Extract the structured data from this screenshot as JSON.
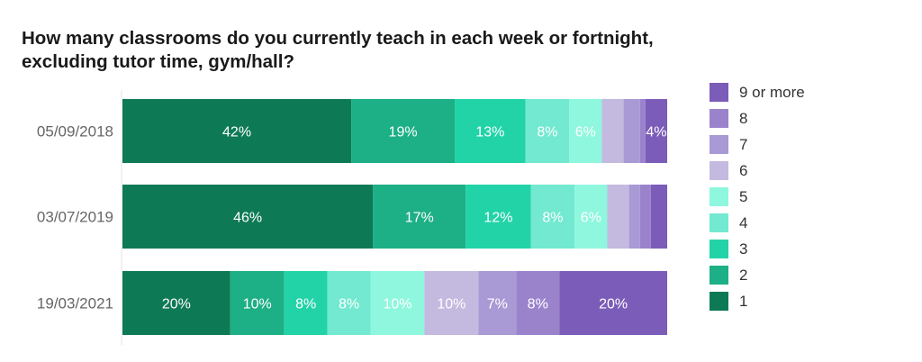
{
  "chart_data": {
    "type": "bar",
    "orientation": "horizontal",
    "stacked": true,
    "normalized": true,
    "title": "How many classrooms do you currently teach in each week or fortnight, excluding tutor time, gym/hall?",
    "categories": [
      "05/09/2018",
      "03/07/2019",
      "19/03/2021"
    ],
    "xlim": [
      0,
      100
    ],
    "grid": false,
    "legend_position": "right",
    "series": [
      {
        "name": "1",
        "color": "#0e7a55",
        "values": [
          42,
          46,
          20
        ],
        "labels": [
          "42%",
          "46%",
          "20%"
        ]
      },
      {
        "name": "2",
        "color": "#1daf86",
        "values": [
          19,
          17,
          10
        ],
        "labels": [
          "19%",
          "17%",
          "10%"
        ]
      },
      {
        "name": "3",
        "color": "#22d3a8",
        "values": [
          13,
          12,
          8
        ],
        "labels": [
          "13%",
          "12%",
          "8%"
        ]
      },
      {
        "name": "4",
        "color": "#72e9d0",
        "values": [
          8,
          8,
          8
        ],
        "labels": [
          "8%",
          "8%",
          "8%"
        ]
      },
      {
        "name": "5",
        "color": "#8ef7de",
        "values": [
          6,
          6,
          10
        ],
        "labels": [
          "6%",
          "6%",
          "10%"
        ]
      },
      {
        "name": "6",
        "color": "#c4b9df",
        "values": [
          4,
          4,
          10
        ],
        "labels": [
          "",
          "",
          "10%"
        ]
      },
      {
        "name": "7",
        "color": "#a999d4",
        "values": [
          3,
          2,
          7
        ],
        "labels": [
          "",
          "",
          "7%"
        ]
      },
      {
        "name": "8",
        "color": "#9b83cc",
        "values": [
          1,
          2,
          8
        ],
        "labels": [
          "",
          "",
          "8%"
        ]
      },
      {
        "name": "9 or more",
        "color": "#7b5cb8",
        "values": [
          4,
          3,
          20
        ],
        "labels": [
          "4%",
          "",
          "20%"
        ]
      }
    ]
  }
}
